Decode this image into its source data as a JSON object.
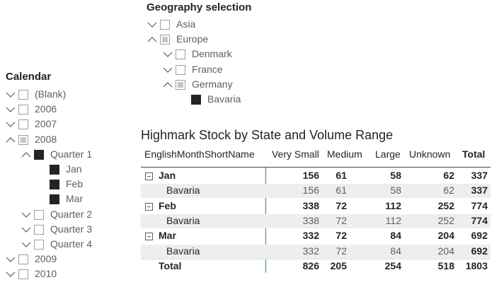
{
  "geography": {
    "title": "Geography selection",
    "items": [
      {
        "label": "Asia",
        "level": 0,
        "expand": "down",
        "state": "empty"
      },
      {
        "label": "Europe",
        "level": 0,
        "expand": "up",
        "state": "partial"
      },
      {
        "label": "Denmark",
        "level": 1,
        "expand": "down",
        "state": "empty"
      },
      {
        "label": "France",
        "level": 1,
        "expand": "down",
        "state": "empty"
      },
      {
        "label": "Germany",
        "level": 1,
        "expand": "up",
        "state": "partial"
      },
      {
        "label": "Bavaria",
        "level": 2,
        "expand": "none",
        "state": "checked"
      }
    ]
  },
  "calendar": {
    "title": "Calendar",
    "items": [
      {
        "label": "(Blank)",
        "level": 0,
        "expand": "down",
        "state": "empty"
      },
      {
        "label": "2006",
        "level": 0,
        "expand": "down",
        "state": "empty"
      },
      {
        "label": "2007",
        "level": 0,
        "expand": "down",
        "state": "empty"
      },
      {
        "label": "2008",
        "level": 0,
        "expand": "up",
        "state": "partial"
      },
      {
        "label": "Quarter 1",
        "level": 1,
        "expand": "up",
        "state": "checked"
      },
      {
        "label": "Jan",
        "level": 2,
        "expand": "none",
        "state": "checked"
      },
      {
        "label": "Feb",
        "level": 2,
        "expand": "none",
        "state": "checked"
      },
      {
        "label": "Mar",
        "level": 2,
        "expand": "none",
        "state": "checked"
      },
      {
        "label": "Quarter 2",
        "level": 1,
        "expand": "down",
        "state": "empty"
      },
      {
        "label": "Quarter 3",
        "level": 1,
        "expand": "down",
        "state": "empty"
      },
      {
        "label": "Quarter 4",
        "level": 1,
        "expand": "down",
        "state": "empty"
      },
      {
        "label": "2009",
        "level": 0,
        "expand": "down",
        "state": "empty"
      },
      {
        "label": "2010",
        "level": 0,
        "expand": "down",
        "state": "empty"
      }
    ]
  },
  "matrix": {
    "title": "Highmark Stock by State and Volume Range",
    "columns": [
      "EnglishMonthShortName",
      "Very Small",
      "Medium",
      "Large",
      "Unknown",
      "Total"
    ],
    "rows": [
      {
        "kind": "group",
        "label": "Jan",
        "cells": [
          156,
          61,
          58,
          62,
          337
        ]
      },
      {
        "kind": "detail",
        "label": "Bavaria",
        "cells": [
          156,
          61,
          58,
          62,
          337
        ]
      },
      {
        "kind": "group",
        "label": "Feb",
        "cells": [
          338,
          72,
          112,
          252,
          774
        ]
      },
      {
        "kind": "detail",
        "label": "Bavaria",
        "cells": [
          338,
          72,
          112,
          252,
          774
        ]
      },
      {
        "kind": "group",
        "label": "Mar",
        "cells": [
          332,
          72,
          84,
          204,
          692
        ]
      },
      {
        "kind": "detail",
        "label": "Bavaria",
        "cells": [
          332,
          72,
          84,
          204,
          692
        ]
      },
      {
        "kind": "total",
        "label": "Total",
        "cells": [
          826,
          205,
          254,
          518,
          1803
        ]
      }
    ]
  }
}
